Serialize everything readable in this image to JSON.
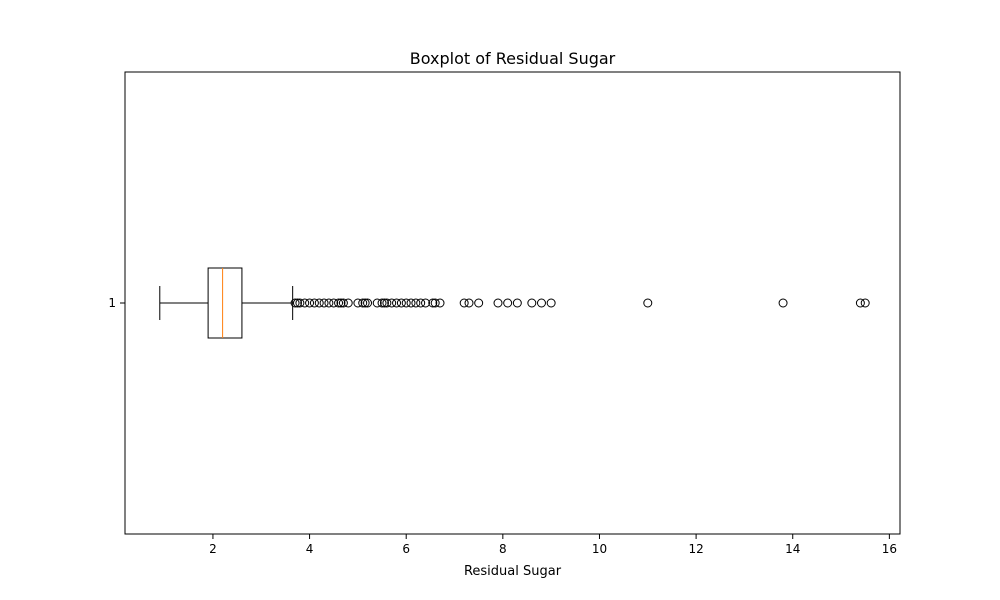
{
  "chart_data": {
    "type": "boxplot",
    "orientation": "horizontal",
    "title": "Boxplot of Residual Sugar",
    "xlabel": "Residual Sugar",
    "ylabel": "",
    "xlim": [
      0.18,
      16.22
    ],
    "x_ticks": [
      2,
      4,
      6,
      8,
      10,
      12,
      14,
      16
    ],
    "categories": [
      "1"
    ],
    "grid": false,
    "box": {
      "min_whisker": 0.9,
      "q1": 1.9,
      "median": 2.2,
      "q3": 2.6,
      "max_whisker": 3.65
    },
    "outliers": [
      3.7,
      3.75,
      3.8,
      3.9,
      4.0,
      4.1,
      4.2,
      4.3,
      4.4,
      4.5,
      4.6,
      4.65,
      4.7,
      4.8,
      5.0,
      5.1,
      5.15,
      5.2,
      5.4,
      5.5,
      5.55,
      5.6,
      5.7,
      5.8,
      5.9,
      6.0,
      6.1,
      6.2,
      6.3,
      6.4,
      6.55,
      6.6,
      6.7,
      7.2,
      7.3,
      7.5,
      7.9,
      8.1,
      8.3,
      8.6,
      8.8,
      9.0,
      11.0,
      13.8,
      15.4,
      15.5
    ],
    "colors": {
      "box": "#000000",
      "median": "#ff7f0e",
      "outlier": "#000000"
    }
  }
}
